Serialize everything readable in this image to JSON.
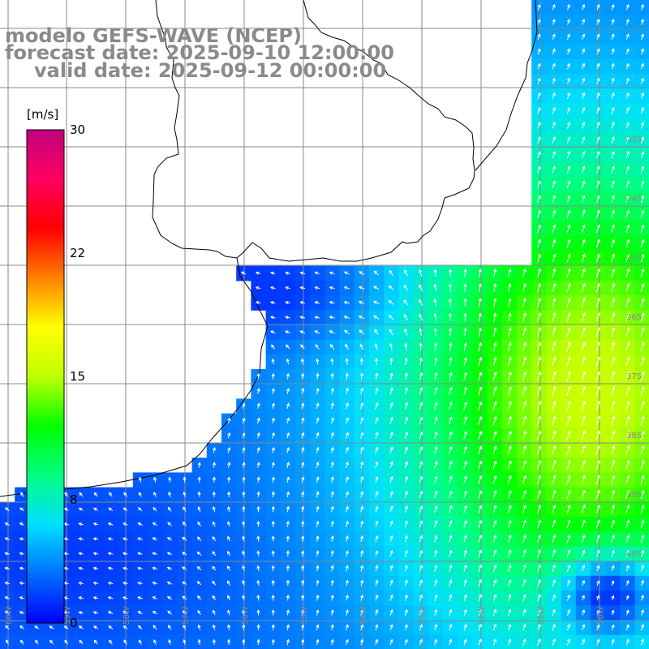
{
  "title": {
    "model": "modelo GEFS-WAVE (NCEP)",
    "forecast": "forecast date: 2025-09-10 12:00:00",
    "valid": "valid date: 2025-09-12 00:00:00"
  },
  "colorbar": {
    "unit": "[m/s]",
    "ticks": [
      "30",
      "22",
      "15",
      "8",
      "0"
    ],
    "range": [
      0,
      30
    ],
    "colors": [
      "#0000ff",
      "#0070ff",
      "#00e0ff",
      "#00ff80",
      "#00ff00",
      "#c0ff00",
      "#ffff00",
      "#ff8000",
      "#ff0000",
      "#ff0060",
      "#c0007f"
    ]
  },
  "map": {
    "land_color": "#ffffff",
    "grid_color": "#888888",
    "coast_color": "#000000",
    "arrow_color": "#ffffff",
    "lon_labels": [
      "60W",
      "59W",
      "58W",
      "57W",
      "56W",
      "55W",
      "54W",
      "53W",
      "52W",
      "51W",
      "50W"
    ],
    "lat_labels": [
      "33S",
      "34S",
      "35S",
      "36S",
      "37S",
      "38S",
      "39S",
      "40S"
    ],
    "wind_field": "southwest-to-northeast flow offshore; weaker easterly flow near the coast",
    "max_wind_region": "east-southeast, green (~14-16 m/s)"
  }
}
